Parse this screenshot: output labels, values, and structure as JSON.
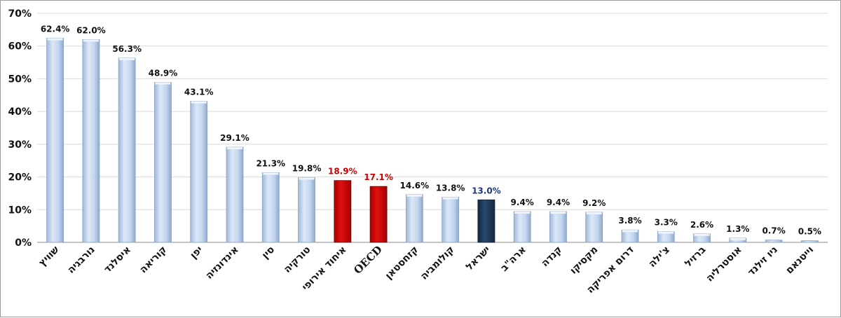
{
  "chart_data": {
    "type": "bar",
    "title": "",
    "xlabel": "",
    "ylabel": "",
    "ylim": [
      0,
      70
    ],
    "yticks": [
      0,
      10,
      20,
      30,
      40,
      50,
      60,
      70
    ],
    "ytick_labels": [
      "0%",
      "10%",
      "20%",
      "30%",
      "40%",
      "50%",
      "60%",
      "70%"
    ],
    "grid": "horizontal",
    "categories": [
      "שוויץ",
      "נורבגיה",
      "איסלנד",
      "קוריאה",
      "יפן",
      "אינדונזיה",
      "סין",
      "טורקיה",
      "איחוד אירופי",
      "OECD",
      "קזחסטאן",
      "קולומביה",
      "ישראל",
      "ארה\"ב",
      "קנדה",
      "מקסיקו",
      "דרום אפריקה",
      "צ'ילה",
      "ברזיל",
      "אוסטרליה",
      "ניו זילנד",
      "וייטנאם"
    ],
    "values": [
      62.4,
      62.0,
      56.3,
      48.9,
      43.1,
      29.1,
      21.3,
      19.8,
      18.9,
      17.1,
      14.6,
      13.8,
      13.0,
      9.4,
      9.4,
      9.2,
      3.8,
      3.3,
      2.6,
      1.3,
      0.7,
      0.5
    ],
    "value_labels": [
      "62.4%",
      "62.0%",
      "56.3%",
      "48.9%",
      "43.1%",
      "29.1%",
      "21.3%",
      "19.8%",
      "18.9%",
      "17.1%",
      "14.6%",
      "13.8%",
      "13.0%",
      "9.4%",
      "9.4%",
      "9.2%",
      "3.8%",
      "3.3%",
      "2.6%",
      "1.3%",
      "0.7%",
      "0.5%"
    ],
    "bar_colors": [
      "#c6d9f1",
      "#c6d9f1",
      "#c6d9f1",
      "#c6d9f1",
      "#c6d9f1",
      "#c6d9f1",
      "#c6d9f1",
      "#c6d9f1",
      "#cc0000",
      "#cc0000",
      "#c6d9f1",
      "#c6d9f1",
      "#1f3a5f",
      "#c6d9f1",
      "#c6d9f1",
      "#c6d9f1",
      "#c6d9f1",
      "#c6d9f1",
      "#c6d9f1",
      "#c6d9f1",
      "#c6d9f1",
      "#c6d9f1"
    ],
    "label_colors": [
      "#111111",
      "#111111",
      "#111111",
      "#111111",
      "#111111",
      "#111111",
      "#111111",
      "#111111",
      "#cc0000",
      "#cc0000",
      "#111111",
      "#111111",
      "#1f3a7a",
      "#111111",
      "#111111",
      "#111111",
      "#111111",
      "#111111",
      "#111111",
      "#111111",
      "#111111",
      "#111111"
    ]
  }
}
